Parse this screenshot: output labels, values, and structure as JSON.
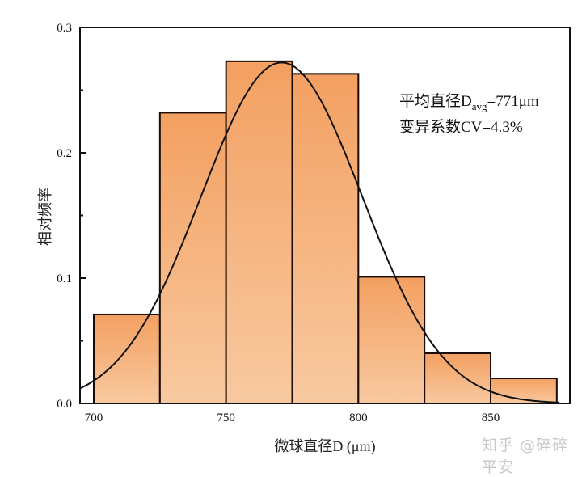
{
  "chart_data": {
    "type": "bar",
    "subtype": "histogram_with_normal_fit",
    "title": "",
    "xlabel": "微球直径D (μm)",
    "ylabel": "相对频率",
    "xlim": [
      695,
      880
    ],
    "ylim": [
      0,
      0.3
    ],
    "x_ticks": [
      700,
      750,
      800,
      850
    ],
    "y_ticks": [
      0.0,
      0.1,
      0.2,
      0.3
    ],
    "y_tick_labels": [
      "0.0",
      "0.1",
      "0.2",
      "0.3"
    ],
    "x_tick_labels": [
      "700",
      "750",
      "800",
      "850"
    ],
    "bin_width": 25,
    "bins": [
      {
        "from": 700,
        "to": 725,
        "value": 0.071
      },
      {
        "from": 725,
        "to": 750,
        "value": 0.232
      },
      {
        "from": 750,
        "to": 775,
        "value": 0.273
      },
      {
        "from": 775,
        "to": 800,
        "value": 0.263
      },
      {
        "from": 800,
        "to": 825,
        "value": 0.101
      },
      {
        "from": 825,
        "to": 850,
        "value": 0.04
      },
      {
        "from": 850,
        "to": 875,
        "value": 0.02
      }
    ],
    "fit_curve": {
      "type": "normal",
      "mean": 771,
      "cv_percent": 4.3,
      "peak": 0.272
    },
    "annotations": [
      "平均直径D_avg=771μm",
      "变异系数CV=4.3%"
    ],
    "grid": false,
    "legend": null,
    "colors": {
      "bar_top": "#f3a061",
      "bar_bottom": "#f8c9a0",
      "bar_edge": "#1a0c05",
      "curve": "#111111",
      "axis": "#111111"
    }
  },
  "annotation": {
    "line1_prefix": "平均直径D",
    "line1_sub": "avg",
    "line1_suffix": "=771μm",
    "line2": "变异系数CV=4.3%"
  },
  "watermark": "知乎 @碎碎平安"
}
